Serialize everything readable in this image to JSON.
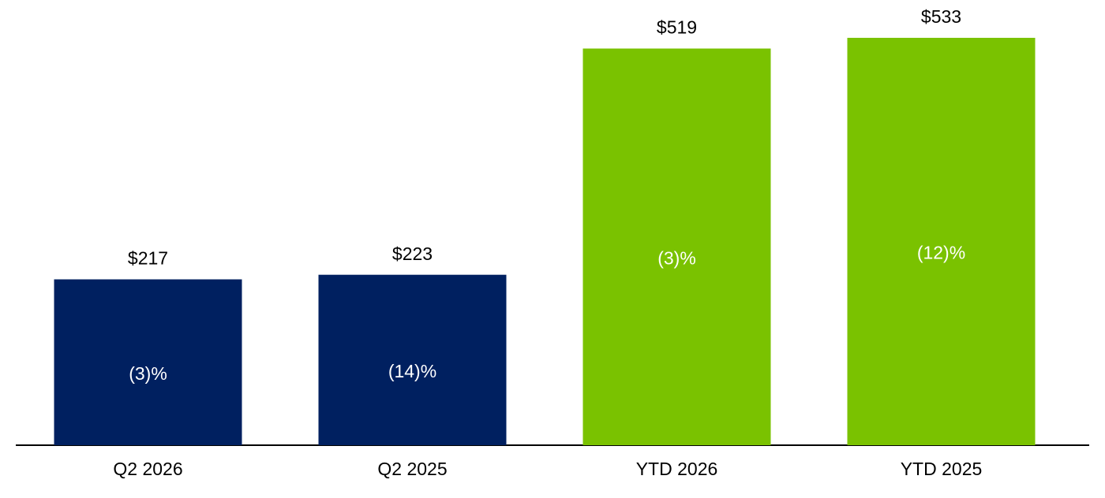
{
  "chart_data": {
    "type": "bar",
    "categories": [
      "Q2 2026",
      "Q2 2025",
      "YTD 2026",
      "YTD 2025"
    ],
    "values": [
      217,
      223,
      519,
      533
    ],
    "value_labels": [
      "$217",
      "$223",
      "$519",
      "$533"
    ],
    "annotations": [
      "(3)%",
      "(14)%",
      "(3)%",
      "(12)%"
    ],
    "colors": [
      "#002060",
      "#002060",
      "#7ac200",
      "#7ac200"
    ]
  }
}
